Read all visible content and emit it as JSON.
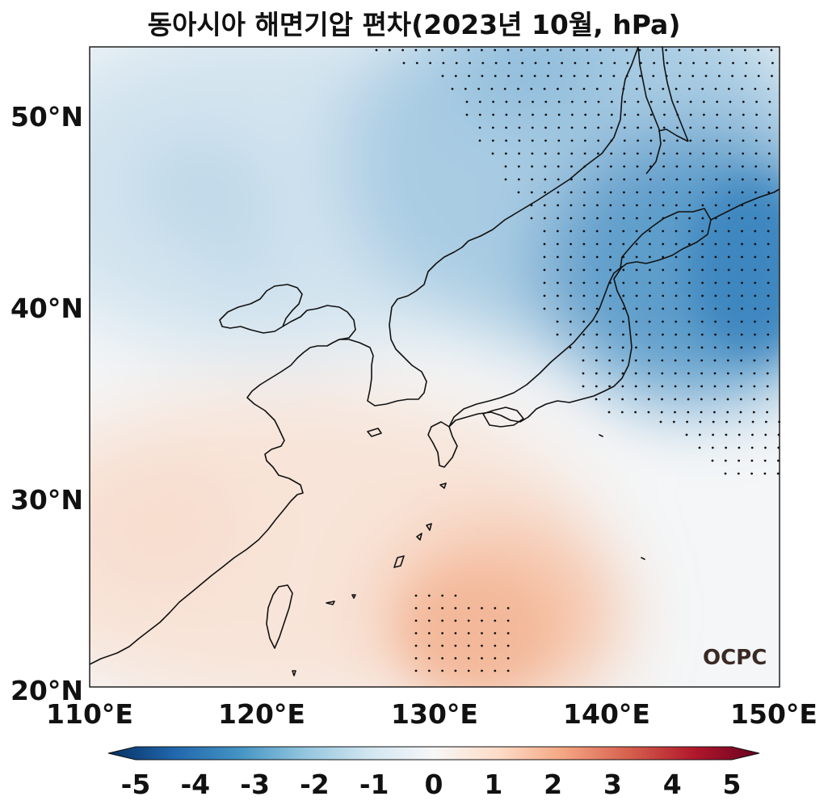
{
  "title": "동아시아 해면기압 편차(2023년 10월, hPa)",
  "map": {
    "lon_range": [
      110,
      150
    ],
    "lat_range": [
      20,
      53.5
    ],
    "x_ticks": [
      "110°E",
      "120°E",
      "130°E",
      "140°E",
      "150°E"
    ],
    "y_ticks": [
      "20°N",
      "30°N",
      "40°N",
      "50°N"
    ],
    "stippling": "significant areas marked with dots"
  },
  "colorbar": {
    "ticks": [
      "-5",
      "-4",
      "-3",
      "-2",
      "-1",
      "0",
      "1",
      "2",
      "3",
      "4",
      "5"
    ],
    "colormap": "RdBu_r",
    "colors": [
      "#053061",
      "#2166ac",
      "#4393c3",
      "#92c5de",
      "#d1e5f0",
      "#f7f7f7",
      "#fddbc7",
      "#f4a582",
      "#d6604d",
      "#b2182b",
      "#67001f"
    ]
  },
  "logo_text": "OCPC"
}
